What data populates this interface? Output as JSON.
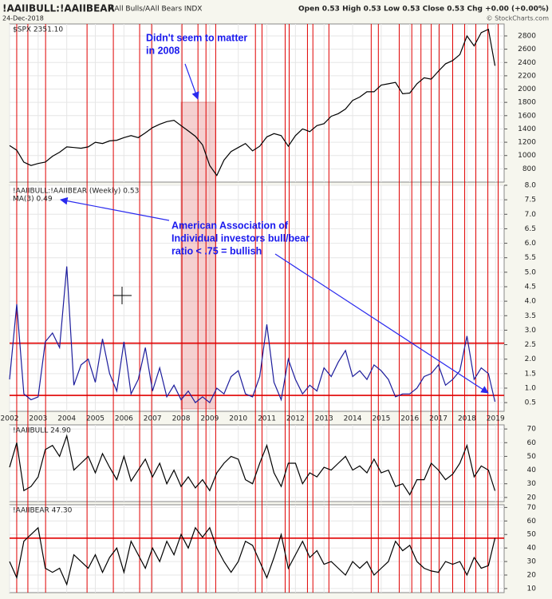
{
  "chart_data": {
    "type": "line",
    "title": "!AAIIBULL:!AAIIBEAR",
    "subtitle": "AAll Bulls/AAll Bears INDX",
    "date": "24-Dec-2018",
    "quote": "Open 0.53  High 0.53  Low 0.53  Close 0.53  Chg +0.00 (+0.00%)",
    "credit": "© StockCharts.com",
    "grid": true,
    "xlim": [
      2002,
      2019.3
    ],
    "xticks": [
      2002,
      2003,
      2004,
      2005,
      2006,
      2007,
      2008,
      2009,
      2010,
      2011,
      2012,
      2013,
      2014,
      2015,
      2016,
      2017,
      2018,
      2019
    ],
    "x": [
      2002,
      2002.25,
      2002.5,
      2002.75,
      2003,
      2003.25,
      2003.5,
      2003.75,
      2004,
      2004.25,
      2004.5,
      2004.75,
      2005,
      2005.25,
      2005.5,
      2005.75,
      2006,
      2006.25,
      2006.5,
      2006.75,
      2007,
      2007.25,
      2007.5,
      2007.75,
      2008,
      2008.25,
      2008.5,
      2008.75,
      2009,
      2009.25,
      2009.5,
      2009.75,
      2010,
      2010.25,
      2010.5,
      2010.75,
      2011,
      2011.25,
      2011.5,
      2011.75,
      2012,
      2012.25,
      2012.5,
      2012.75,
      2013,
      2013.25,
      2013.5,
      2013.75,
      2014,
      2014.25,
      2014.5,
      2014.75,
      2015,
      2015.25,
      2015.5,
      2015.75,
      2016,
      2016.25,
      2016.5,
      2016.75,
      2017,
      2017.25,
      2017.5,
      2017.75,
      2018,
      2018.25,
      2018.5,
      2018.75,
      2018.98
    ],
    "signal_color": "#e00000",
    "signal_dates": [
      2002.25,
      2002.64,
      2003.26,
      2004.71,
      2005.63,
      2006.55,
      2006.97,
      2008.03,
      2008.59,
      2008.87,
      2009.21,
      2010.6,
      2010.83,
      2011.64,
      2011.78,
      2012.42,
      2012.61,
      2013.17,
      2014.65,
      2014.9,
      2015.63,
      2016.07,
      2016.39,
      2016.75,
      2017.03,
      2017.5,
      2017.92,
      2018.31,
      2018.73,
      2019.09
    ],
    "highlight_x": [
      2008.0,
      2009.2
    ],
    "annotations": [
      {
        "lines": [
          "Didn't seem to matter",
          "in 2008"
        ]
      },
      {
        "lines": [
          "American Association of",
          "Individual investors bull/bear",
          "ratio < .75 = bullish"
        ]
      }
    ],
    "panels": [
      {
        "legend": "$SPX 2351.10",
        "ylim": [
          600,
          2980
        ],
        "yticks": [
          800,
          1000,
          1200,
          1400,
          1600,
          1800,
          2000,
          2200,
          2400,
          2600,
          2800
        ],
        "series": [
          {
            "name": "$SPX",
            "color": "#000000",
            "values": [
              1150,
              1080,
              900,
              850,
              880,
              900,
              990,
              1050,
              1130,
              1120,
              1110,
              1130,
              1200,
              1180,
              1220,
              1230,
              1270,
              1300,
              1270,
              1340,
              1420,
              1470,
              1510,
              1530,
              1450,
              1370,
              1290,
              1160,
              850,
              700,
              930,
              1060,
              1120,
              1180,
              1070,
              1140,
              1280,
              1330,
              1300,
              1140,
              1300,
              1400,
              1360,
              1450,
              1480,
              1590,
              1630,
              1700,
              1830,
              1880,
              1960,
              1960,
              2060,
              2080,
              2100,
              1930,
              1940,
              2080,
              2170,
              2150,
              2270,
              2380,
              2430,
              2520,
              2800,
              2650,
              2850,
              2900,
              2351
            ]
          }
        ]
      },
      {
        "legend": "!AAIIBULL:!AAIIBEAR (Weekly) 0.53",
        "legend2": "MA(3) 0.49",
        "ylim": [
          0.2,
          8.0
        ],
        "yticks": [
          0.5,
          {
            "value": 1,
            "label": "1.0"
          },
          1.5,
          {
            "value": 2,
            "label": "2.0"
          },
          2.5,
          {
            "value": 3,
            "label": "3.0"
          },
          3.5,
          {
            "value": 4,
            "label": "4.0"
          },
          4.5,
          {
            "value": 5,
            "label": "5.0"
          },
          5.5,
          {
            "value": 6,
            "label": "6.0"
          },
          6.5,
          {
            "value": 7,
            "label": "7.0"
          },
          7.5,
          {
            "value": 8,
            "label": "8.0"
          }
        ],
        "hlines": [
          2.55,
          0.75
        ],
        "series": [
          {
            "name": "!AAIIBULL:!AAIIBEAR",
            "color": "#1c1c9c",
            "values": [
              1.3,
              3.9,
              0.8,
              0.6,
              0.7,
              2.6,
              2.9,
              2.4,
              5.2,
              1.1,
              1.8,
              2.0,
              1.2,
              2.7,
              1.5,
              0.9,
              2.6,
              0.8,
              1.3,
              2.4,
              0.9,
              1.7,
              0.7,
              1.1,
              0.6,
              0.9,
              0.5,
              0.7,
              0.5,
              1.0,
              0.8,
              1.4,
              1.6,
              0.8,
              0.7,
              1.4,
              3.2,
              1.2,
              0.6,
              2.0,
              1.3,
              0.8,
              1.1,
              0.9,
              1.7,
              1.4,
              1.9,
              2.3,
              1.4,
              1.6,
              1.3,
              1.8,
              1.6,
              1.3,
              0.7,
              0.8,
              0.8,
              1.0,
              1.4,
              1.5,
              1.8,
              1.1,
              1.3,
              1.6,
              2.8,
              1.3,
              1.7,
              1.5,
              0.53
            ]
          }
        ]
      },
      {
        "legend": "!AAIIBULL 24.90",
        "ylim": [
          17,
          73
        ],
        "yticks": [
          20,
          30,
          40,
          50,
          60,
          70
        ],
        "series": [
          {
            "name": "!AAIIBULL",
            "color": "#000000",
            "values": [
              42,
              60,
              25,
              28,
              35,
              55,
              58,
              50,
              65,
              40,
              45,
              50,
              38,
              52,
              42,
              33,
              50,
              32,
              40,
              48,
              35,
              45,
              30,
              40,
              28,
              35,
              27,
              33,
              25,
              38,
              45,
              50,
              48,
              33,
              30,
              45,
              58,
              38,
              28,
              45,
              45,
              30,
              38,
              35,
              42,
              40,
              45,
              50,
              40,
              43,
              38,
              48,
              38,
              40,
              28,
              30,
              22,
              33,
              33,
              45,
              40,
              33,
              37,
              45,
              58,
              35,
              43,
              40,
              24.9
            ]
          }
        ]
      },
      {
        "legend": "!AAIIBEAR 47.30",
        "ylim": [
          7,
          72
        ],
        "yticks": [
          10,
          20,
          30,
          40,
          50,
          60,
          70
        ],
        "hlines": [
          47.3
        ],
        "series": [
          {
            "name": "!AAIIBEAR",
            "color": "#000000",
            "values": [
              30,
              18,
              45,
              50,
              55,
              25,
              22,
              25,
              13,
              35,
              30,
              25,
              35,
              22,
              33,
              40,
              22,
              45,
              35,
              25,
              40,
              30,
              45,
              35,
              50,
              40,
              55,
              48,
              55,
              40,
              30,
              22,
              30,
              45,
              42,
              30,
              18,
              33,
              50,
              25,
              35,
              45,
              33,
              38,
              28,
              30,
              25,
              20,
              30,
              25,
              30,
              20,
              25,
              30,
              45,
              38,
              42,
              30,
              25,
              23,
              22,
              30,
              28,
              30,
              20,
              33,
              25,
              27,
              47.3
            ]
          }
        ]
      }
    ]
  }
}
